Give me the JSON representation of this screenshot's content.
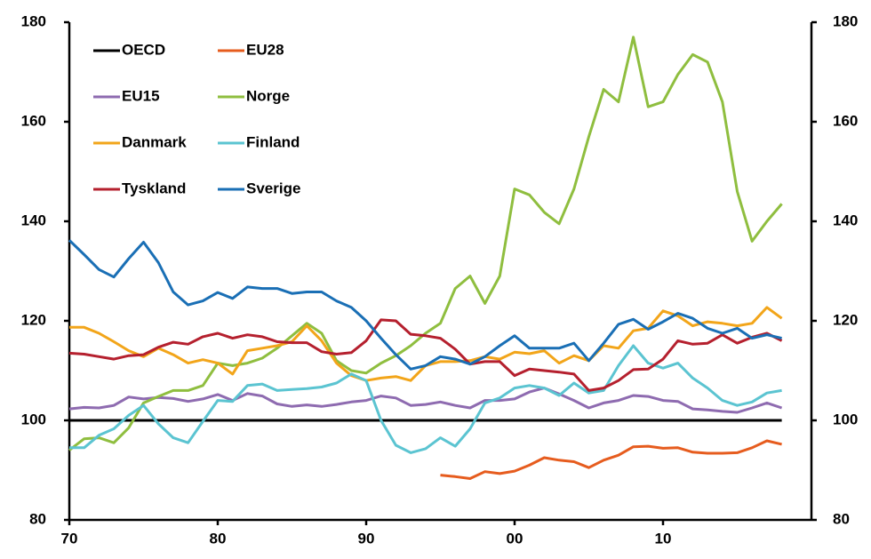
{
  "chart_data": {
    "type": "line",
    "x": [
      1970,
      1971,
      1972,
      1973,
      1974,
      1975,
      1976,
      1977,
      1978,
      1979,
      1980,
      1981,
      1982,
      1983,
      1984,
      1985,
      1986,
      1987,
      1988,
      1989,
      1990,
      1991,
      1992,
      1993,
      1994,
      1995,
      1996,
      1997,
      1998,
      1999,
      2000,
      2001,
      2002,
      2003,
      2004,
      2005,
      2006,
      2007,
      2008,
      2009,
      2010,
      2011,
      2012,
      2013,
      2014,
      2015,
      2016,
      2017,
      2018
    ],
    "xlim": [
      1970,
      2020
    ],
    "xticks": [
      {
        "value": 1970,
        "label": "70"
      },
      {
        "value": 1980,
        "label": "80"
      },
      {
        "value": 1990,
        "label": "90"
      },
      {
        "value": 2000,
        "label": "00"
      },
      {
        "value": 2010,
        "label": "10"
      }
    ],
    "ylim": [
      80,
      180
    ],
    "yticks": [
      80,
      100,
      120,
      140,
      160,
      180
    ],
    "y2lim": [
      80,
      180
    ],
    "y2ticks": [
      80,
      100,
      120,
      140,
      160,
      180
    ],
    "legend": "upper left",
    "series": [
      {
        "name": "OECD",
        "color": "#000000",
        "values": [
          100,
          100,
          100,
          100,
          100,
          100,
          100,
          100,
          100,
          100,
          100,
          100,
          100,
          100,
          100,
          100,
          100,
          100,
          100,
          100,
          100,
          100,
          100,
          100,
          100,
          100,
          100,
          100,
          100,
          100,
          100,
          100,
          100,
          100,
          100,
          100,
          100,
          100,
          100,
          100,
          100,
          100,
          100,
          100,
          100,
          100,
          100,
          100,
          100
        ]
      },
      {
        "name": "EU28",
        "color": "#e65c1e",
        "values": [
          null,
          null,
          null,
          null,
          null,
          null,
          null,
          null,
          null,
          null,
          null,
          null,
          null,
          null,
          null,
          null,
          null,
          null,
          null,
          null,
          null,
          null,
          null,
          null,
          null,
          89,
          88.7,
          88.3,
          89.7,
          89.3,
          89.8,
          91,
          92.5,
          92,
          91.7,
          90.5,
          92,
          93,
          94.7,
          94.8,
          94.4,
          94.5,
          93.6,
          93.4,
          93.4,
          93.5,
          94.5,
          95.9,
          95.2
        ]
      },
      {
        "name": "EU15",
        "color": "#8e6bb0",
        "values": [
          102.3,
          102.6,
          102.5,
          103,
          104.7,
          104.3,
          104.6,
          104.4,
          103.8,
          104.3,
          105.2,
          104,
          105.4,
          104.9,
          103.3,
          102.8,
          103.1,
          102.8,
          103.2,
          103.7,
          104,
          104.9,
          104.5,
          103,
          103.2,
          103.7,
          103,
          102.5,
          104,
          104,
          104.3,
          105.7,
          106.5,
          105.3,
          104,
          102.5,
          103.5,
          104,
          105,
          104.8,
          104,
          103.8,
          102.3,
          102.1,
          101.8,
          101.6,
          102.5,
          103.5,
          102.5
        ]
      },
      {
        "name": "Norge",
        "color": "#8fbe3f",
        "values": [
          94,
          96.3,
          96.5,
          95.5,
          98.5,
          103.5,
          104.8,
          106,
          106,
          107,
          111.5,
          111,
          111.5,
          112.5,
          114.5,
          117,
          119.5,
          117.5,
          112,
          110,
          109.5,
          111.5,
          113,
          115,
          117.5,
          119.5,
          126.5,
          129,
          123.5,
          129,
          146.5,
          145.3,
          141.8,
          139.5,
          146.5,
          157,
          166.5,
          164,
          177,
          163,
          164,
          169.5,
          173.5,
          172,
          164,
          146,
          136,
          140,
          143.5
        ]
      },
      {
        "name": "Danmark",
        "color": "#f2a51a",
        "values": [
          118.7,
          118.7,
          117.5,
          115.8,
          114,
          112.8,
          114.5,
          113.2,
          111.5,
          112.2,
          111.5,
          109.3,
          114,
          114.5,
          115,
          115.8,
          119,
          116,
          111.5,
          109,
          108,
          108.5,
          108.8,
          108,
          111,
          111.8,
          111.8,
          112,
          112.8,
          112.3,
          113.7,
          113.4,
          114,
          111.5,
          113,
          112,
          115,
          114.5,
          118,
          118.5,
          122,
          121,
          119,
          119.8,
          119.5,
          119,
          119.5,
          122.7,
          120.5
        ]
      },
      {
        "name": "Finland",
        "color": "#5bc4d1",
        "values": [
          94.5,
          94.5,
          97,
          98.3,
          101,
          103,
          99.3,
          96.5,
          95.5,
          99.8,
          104,
          103.8,
          107,
          107.3,
          106,
          106.2,
          106.4,
          106.7,
          107.5,
          109.3,
          108,
          100,
          95,
          93.5,
          94.3,
          96.5,
          94.8,
          98.3,
          103.5,
          104.5,
          106.5,
          107,
          106.5,
          105,
          107.5,
          105.5,
          106,
          111,
          115,
          111.5,
          110.5,
          111.5,
          108.5,
          106.5,
          104,
          103,
          103.7,
          105.5,
          106
        ]
      },
      {
        "name": "Tyskland",
        "color": "#b5202e",
        "values": [
          113.5,
          113.3,
          112.8,
          112.3,
          113,
          113.2,
          114.7,
          115.7,
          115.3,
          116.8,
          117.5,
          116.5,
          117.2,
          116.8,
          115.8,
          115.6,
          115.6,
          113.8,
          113.3,
          113.6,
          116,
          120.2,
          120,
          117.3,
          117,
          116.5,
          114.3,
          111.3,
          111.8,
          111.8,
          109,
          110.3,
          110,
          109.7,
          109.3,
          106,
          106.5,
          108,
          110.2,
          110.3,
          112.3,
          116,
          115.3,
          115.5,
          117.2,
          115.5,
          116.7,
          117.5,
          116
        ]
      },
      {
        "name": "Sverige",
        "color": "#1a6fb5",
        "values": [
          136.2,
          133.3,
          130.3,
          128.8,
          132.5,
          135.8,
          131.7,
          125.8,
          123.2,
          124,
          125.7,
          124.5,
          126.8,
          126.5,
          126.5,
          125.5,
          125.8,
          125.8,
          124,
          122.7,
          120,
          116.5,
          113.2,
          110.3,
          111,
          112.8,
          112.3,
          111.3,
          112.8,
          115,
          117,
          114.5,
          114.5,
          114.5,
          115.5,
          112,
          115.5,
          119.3,
          120.3,
          118.3,
          119.8,
          121.5,
          120.5,
          118.5,
          117.5,
          118.5,
          116.5,
          117.2,
          116.5
        ]
      }
    ]
  }
}
